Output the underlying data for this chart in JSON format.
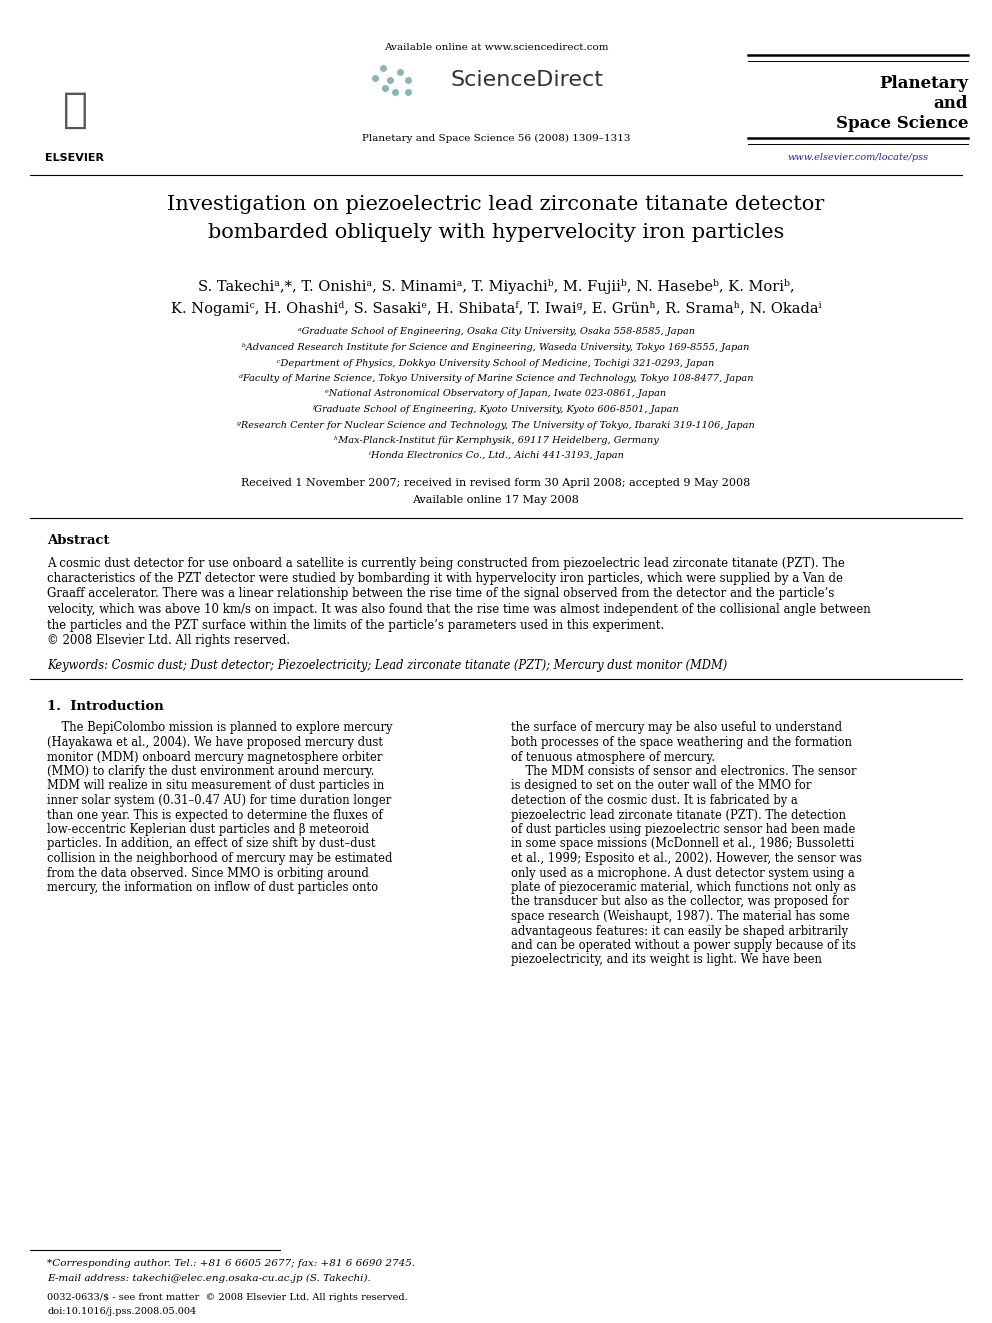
{
  "page_width": 9.92,
  "page_height": 13.23,
  "dpi": 100,
  "background_color": "#ffffff",
  "header": {
    "available_online_text": "Available online at www.sciencedirect.com",
    "sciencedirect_text": "ScienceDirect",
    "journal_name_line1": "Planetary and Space Science 56 (2008) 1309–1313",
    "journal_logo_text_line1": "Planetary",
    "journal_logo_text_line2": "and",
    "journal_logo_text_line3": "Space Science",
    "url_text": "www.elsevier.com/locate/pss",
    "url_color": "#2222bb",
    "elsevier_text": "ELSEVIER"
  },
  "title": "Investigation on piezoelectric lead zirconate titanate detector\nbombarded obliquely with hypervelocity iron particles",
  "authors_line1": "S. Takechiᵃ,*, T. Onishiᵃ, S. Minamiᵃ, T. Miyachiᵇ, M. Fujiiᵇ, N. Hasebeᵇ, K. Moriᵇ,",
  "authors_line2": "K. Nogamiᶜ, H. Ohashiᵈ, S. Sasakiᵉ, H. Shibataᶠ, T. Iwaiᵍ, E. Grünʰ, R. Sramaʰ, N. Okadaⁱ",
  "affiliations": [
    "ᵃGraduate School of Engineering, Osaka City University, Osaka 558-8585, Japan",
    "ᵇAdvanced Research Institute for Science and Engineering, Waseda University, Tokyo 169-8555, Japan",
    "ᶜDepartment of Physics, Dokkyo University School of Medicine, Tochigi 321-0293, Japan",
    "ᵈFaculty of Marine Science, Tokyo University of Marine Science and Technology, Tokyo 108-8477, Japan",
    "ᵉNational Astronomical Observatory of Japan, Iwate 023-0861, Japan",
    "ᶠGraduate School of Engineering, Kyoto University, Kyoto 606-8501, Japan",
    "ᵍResearch Center for Nuclear Science and Technology, The University of Tokyo, Ibaraki 319-1106, Japan",
    "ʰMax-Planck-Institut für Kernphysik, 69117 Heidelberg, Germany",
    "ⁱHonda Electronics Co., Ltd., Aichi 441-3193, Japan"
  ],
  "received_text": "Received 1 November 2007; received in revised form 30 April 2008; accepted 9 May 2008",
  "available_online_date": "Available online 17 May 2008",
  "abstract_title": "Abstract",
  "abstract_text_lines": [
    "A cosmic dust detector for use onboard a satellite is currently being constructed from piezoelectric lead zirconate titanate (PZT). The",
    "characteristics of the PZT detector were studied by bombarding it with hypervelocity iron particles, which were supplied by a Van de",
    "Graaff accelerator. There was a linear relationship between the rise time of the signal observed from the detector and the particle’s",
    "velocity, which was above 10 km/s on impact. It was also found that the rise time was almost independent of the collisional angle between",
    "the particles and the PZT surface within the limits of the particle’s parameters used in this experiment.",
    "© 2008 Elsevier Ltd. All rights reserved."
  ],
  "keywords_text": "Keywords: Cosmic dust; Dust detector; Piezoelectricity; Lead zirconate titanate (PZT); Mercury dust monitor (MDM)",
  "section1_title": "1.  Introduction",
  "section1_col1_lines": [
    "    The BepiColombo mission is planned to explore mercury",
    "(Hayakawa et al., 2004). We have proposed mercury dust",
    "monitor (MDM) onboard mercury magnetosphere orbiter",
    "(MMO) to clarify the dust environment around mercury.",
    "MDM will realize in situ measurement of dust particles in",
    "inner solar system (0.31–0.47 AU) for time duration longer",
    "than one year. This is expected to determine the fluxes of",
    "low-eccentric Keplerian dust particles and β meteoroid",
    "particles. In addition, an effect of size shift by dust–dust",
    "collision in the neighborhood of mercury may be estimated",
    "from the data observed. Since MMO is orbiting around",
    "mercury, the information on inflow of dust particles onto"
  ],
  "section1_col2_lines": [
    "the surface of mercury may be also useful to understand",
    "both processes of the space weathering and the formation",
    "of tenuous atmosphere of mercury.",
    "    The MDM consists of sensor and electronics. The sensor",
    "is designed to set on the outer wall of the MMO for",
    "detection of the cosmic dust. It is fabricated by a",
    "piezoelectric lead zirconate titanate (PZT). The detection",
    "of dust particles using piezoelectric sensor had been made",
    "in some space missions (McDonnell et al., 1986; Bussoletti",
    "et al., 1999; Esposito et al., 2002). However, the sensor was",
    "only used as a microphone. A dust detector system using a",
    "plate of piezoceramic material, which functions not only as",
    "the transducer but also as the collector, was proposed for",
    "space research (Weishaupt, 1987). The material has some",
    "advantageous features: it can easily be shaped arbitrarily",
    "and can be operated without a power supply because of its",
    "piezoelectricity, and its weight is light. We have been"
  ],
  "footnote_star": "*Corresponding author. Tel.: +81 6 6605 2677; fax: +81 6 6690 2745.",
  "footnote_email": "E-mail address: takechi@elec.eng.osaka-cu.ac.jp (S. Takechi).",
  "footer_issn": "0032-0633/$ - see front matter  © 2008 Elsevier Ltd. All rights reserved.",
  "footer_doi": "doi:10.1016/j.pss.2008.05.004"
}
